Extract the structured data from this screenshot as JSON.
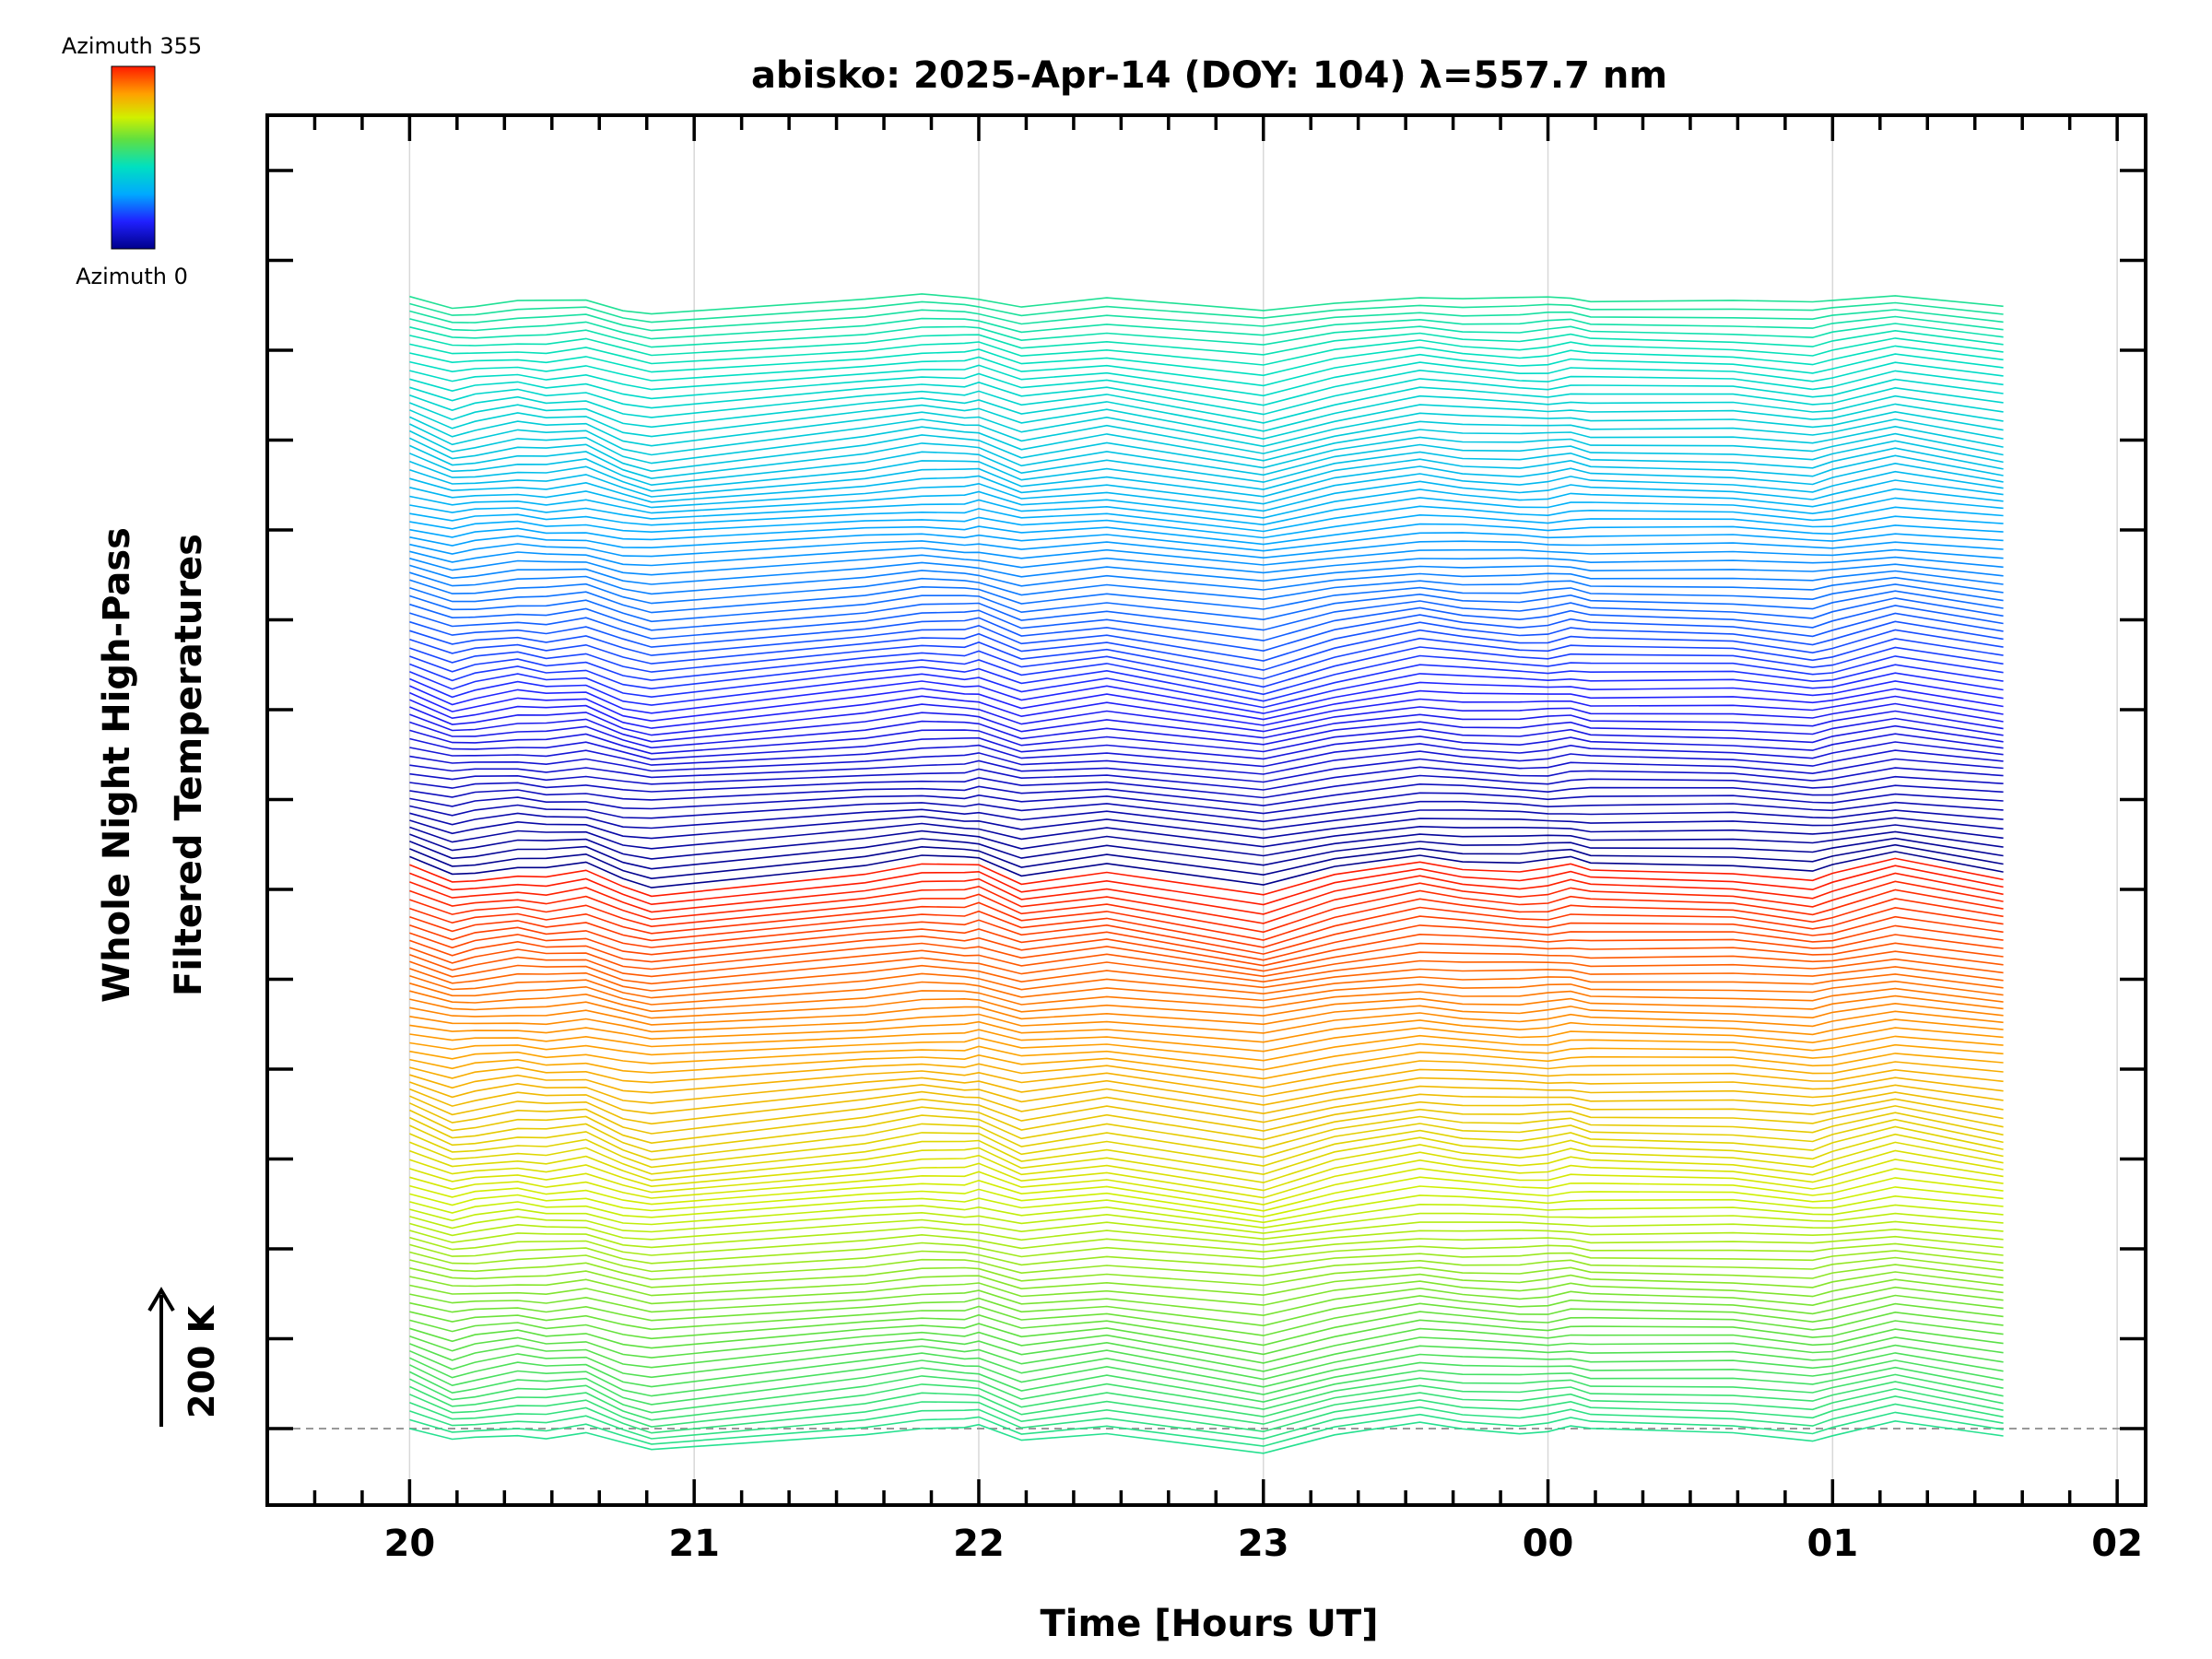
{
  "chart_data": {
    "type": "line",
    "title": "abisko: 2025-Apr-14 (DOY: 104) λ=557.7 nm",
    "xlabel": "Time [Hours UT]",
    "ylabel_line1": "Whole Night High-Pass",
    "ylabel_line2": "Filtered Temperatures",
    "x_ticks": [
      "20",
      "21",
      "22",
      "23",
      "00",
      "01",
      "02"
    ],
    "x_tick_values": [
      20,
      21,
      22,
      23,
      24,
      25,
      26
    ],
    "xlim": [
      19.5,
      26.1
    ],
    "grid": "vertical",
    "scale_bar_label": "200 K",
    "colorbar": {
      "top_label": "Azimuth 355",
      "bottom_label": "Azimuth 0",
      "colormap": "rainbow"
    },
    "n_series": 144,
    "azimuth_step_deg": 2.5,
    "series_offset_K": 12,
    "x": [
      20.0,
      20.15,
      20.23,
      20.38,
      20.48,
      20.62,
      20.75,
      20.85,
      21.6,
      21.8,
      21.95,
      22.0,
      22.15,
      22.45,
      23.0,
      23.25,
      23.55,
      23.7,
      23.9,
      24.0,
      24.08,
      24.15,
      24.65,
      24.93,
      25.0,
      25.22,
      25.6
    ],
    "profile_K": [
      0,
      -20,
      -15,
      -8,
      -12,
      -7,
      -25,
      -33,
      -6,
      3,
      0,
      2,
      -18,
      -4,
      -35,
      -12,
      6,
      0,
      -4,
      -3,
      1,
      -3,
      -5,
      -15,
      -10,
      8,
      -14
    ],
    "data_label": "—"
  }
}
